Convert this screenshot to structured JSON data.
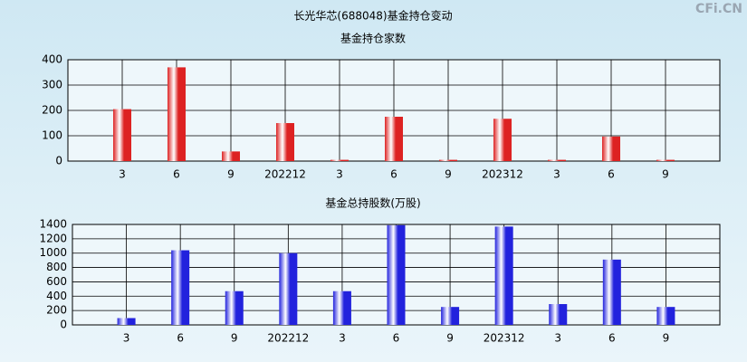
{
  "title": "长光华芯(688048)基金持仓变动",
  "watermark": "CFi.CN",
  "chart_data": [
    {
      "type": "bar",
      "title": "基金持仓家数",
      "categories": [
        "3",
        "6",
        "9",
        "202212",
        "3",
        "6",
        "9",
        "202312",
        "3",
        "6",
        "9"
      ],
      "values": [
        205,
        370,
        38,
        150,
        5,
        175,
        5,
        167,
        5,
        97,
        5
      ],
      "color": "#dd2222",
      "ylim": [
        0,
        400
      ],
      "yticks": [
        0,
        100,
        200,
        300,
        400
      ],
      "grid": true
    },
    {
      "type": "bar",
      "title": "基金总持股数(万股)",
      "categories": [
        "3",
        "6",
        "9",
        "202212",
        "3",
        "6",
        "9",
        "202312",
        "3",
        "6",
        "9"
      ],
      "values": [
        95,
        1040,
        470,
        1000,
        470,
        1390,
        250,
        1370,
        290,
        910,
        250
      ],
      "color": "#2222dd",
      "ylim": [
        0,
        1400
      ],
      "yticks": [
        0,
        200,
        400,
        600,
        800,
        1000,
        1200,
        1400
      ],
      "grid": true
    }
  ]
}
